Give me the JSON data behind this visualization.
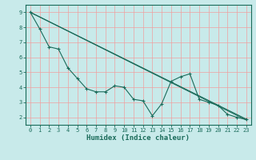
{
  "title": "",
  "xlabel": "Humidex (Indice chaleur)",
  "background_color": "#c8eaea",
  "grid_color": "#f0a0a0",
  "line_color": "#1a6b5a",
  "xlim": [
    -0.5,
    23.5
  ],
  "ylim": [
    1.5,
    9.5
  ],
  "xticks": [
    0,
    1,
    2,
    3,
    4,
    5,
    6,
    7,
    8,
    9,
    10,
    11,
    12,
    13,
    14,
    15,
    16,
    17,
    18,
    19,
    20,
    21,
    22,
    23
  ],
  "yticks": [
    2,
    3,
    4,
    5,
    6,
    7,
    8,
    9
  ],
  "series1_x": [
    0,
    1,
    2,
    3,
    4,
    5,
    6,
    7,
    8,
    9,
    10,
    11,
    12,
    13,
    14,
    15,
    16,
    17,
    18,
    19,
    20,
    21,
    22,
    23
  ],
  "series1_y": [
    9.0,
    7.9,
    6.7,
    6.55,
    5.3,
    4.6,
    3.9,
    3.7,
    3.7,
    4.1,
    4.0,
    3.2,
    3.1,
    2.1,
    2.9,
    4.4,
    4.7,
    4.9,
    3.2,
    3.0,
    2.8,
    2.2,
    2.0,
    1.85
  ],
  "line2_x": [
    0,
    23
  ],
  "line2_y": [
    9.0,
    1.88
  ],
  "line3_x": [
    0,
    23
  ],
  "line3_y": [
    9.0,
    1.82
  ]
}
